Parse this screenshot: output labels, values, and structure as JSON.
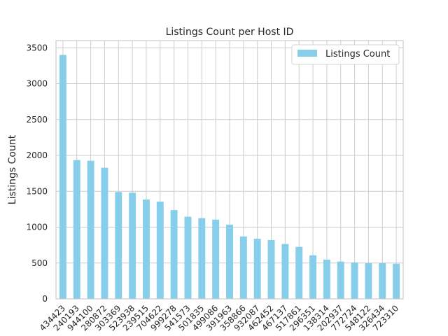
{
  "chart_data": {
    "type": "bar",
    "title": "Listings Count per Host ID",
    "xlabel": "",
    "ylabel": "Listings Count",
    "ylim": [
      0,
      3600
    ],
    "yticks": [
      0,
      500,
      1000,
      1500,
      2000,
      2500,
      3000,
      3500
    ],
    "grid": true,
    "legend_position": "top-right",
    "colors": {
      "bar": "#87ceeb",
      "grid": "#cccccc",
      "axes_edge": "#cccccc"
    },
    "categories": [
      "434423",
      "240193",
      "944100",
      "280872",
      "303369",
      "523938",
      "239515",
      "704622",
      "999278",
      "541573",
      "501835",
      "499086",
      "391963",
      "358866",
      "932087",
      "462452",
      "467137",
      "517861",
      "296351",
      "138314",
      "202937",
      "772724",
      "548122",
      "326434",
      "723310"
    ],
    "series": [
      {
        "name": "Listings Count",
        "values": [
          3400,
          1935,
          1925,
          1828,
          1490,
          1480,
          1385,
          1355,
          1238,
          1145,
          1125,
          1105,
          1035,
          870,
          838,
          820,
          765,
          725,
          608,
          548,
          520,
          508,
          500,
          500,
          490
        ]
      }
    ]
  }
}
